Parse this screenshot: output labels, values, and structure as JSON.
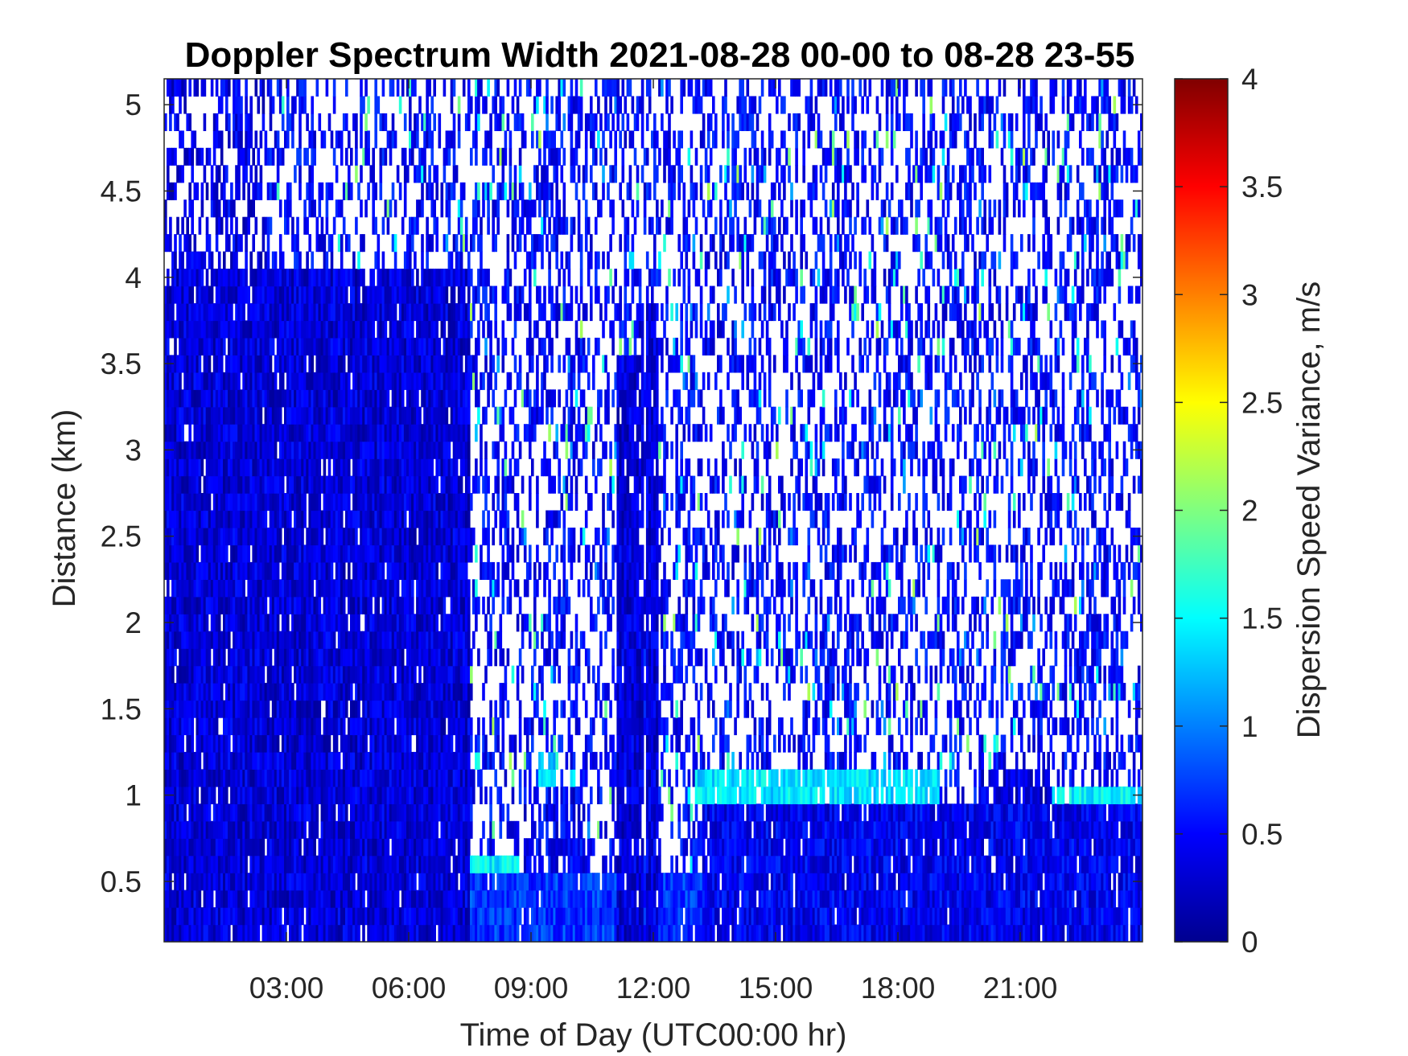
{
  "chart_data": {
    "type": "heatmap",
    "title": "Doppler Spectrum Width 2021-08-28 00-00 to 08-28 23-55",
    "xlabel": "Time of Day (UTC00:00 hr)",
    "ylabel": "Distance (km)",
    "x_tick_labels": [
      "03:00",
      "06:00",
      "09:00",
      "12:00",
      "15:00",
      "18:00",
      "21:00"
    ],
    "x_tick_values_hr": [
      3,
      6,
      9,
      12,
      15,
      18,
      21
    ],
    "xlim_hr": [
      0,
      24
    ],
    "y_tick_labels": [
      "0.5",
      "1",
      "1.5",
      "2",
      "2.5",
      "3",
      "3.5",
      "4",
      "4.5",
      "5"
    ],
    "y_tick_values": [
      0.5,
      1,
      1.5,
      2,
      2.5,
      3,
      3.5,
      4,
      4.5,
      5
    ],
    "ylim": [
      0.15,
      5.15
    ],
    "colorbar": {
      "label": "Dispersion Speed Variance, m/s",
      "tick_labels": [
        "0",
        "0.5",
        "1",
        "1.5",
        "2",
        "2.5",
        "3",
        "3.5",
        "4"
      ],
      "tick_values": [
        0,
        0.5,
        1,
        1.5,
        2,
        2.5,
        3,
        3.5,
        4
      ],
      "range": [
        0,
        4
      ],
      "colormap": "jet"
    },
    "regions": [
      {
        "x": [
          0,
          7.5
        ],
        "y": [
          0.15,
          4.05
        ],
        "value": 0.35,
        "coverage": 0.96
      },
      {
        "x": [
          0,
          2.5
        ],
        "y": [
          4.05,
          5.15
        ],
        "value": 0.4,
        "coverage": 0.5
      },
      {
        "x": [
          11.1,
          11.6
        ],
        "y": [
          0.15,
          3.55
        ],
        "value": 0.35,
        "coverage": 0.95
      },
      {
        "x": [
          11.6,
          11.75
        ],
        "y": [
          0.15,
          3.85
        ],
        "value": 0.35,
        "coverage": 0.9
      },
      {
        "x": [
          11.85,
          12.1
        ],
        "y": [
          0.15,
          3.85
        ],
        "value": 0.35,
        "coverage": 0.95
      },
      {
        "x": [
          13.2,
          24
        ],
        "y": [
          0.15,
          0.95
        ],
        "value": 0.45,
        "coverage": 0.95
      },
      {
        "x": [
          13,
          19
        ],
        "y": [
          0.95,
          1.15
        ],
        "value": 1.4,
        "coverage": 0.8
      },
      {
        "x": [
          20,
          21.8
        ],
        "y": [
          0.95,
          1.15
        ],
        "value": 0.35,
        "coverage": 0.85
      },
      {
        "x": [
          21.8,
          24
        ],
        "y": [
          0.95,
          1.05
        ],
        "value": 1.45,
        "coverage": 0.85
      },
      {
        "x": [
          7.5,
          8.7
        ],
        "y": [
          0.55,
          0.65
        ],
        "value": 1.45,
        "coverage": 0.9
      },
      {
        "x": [
          7.5,
          24
        ],
        "y": [
          0.15,
          0.55
        ],
        "value": 0.7,
        "coverage": 0.97
      },
      {
        "x": [
          9.2,
          9.6
        ],
        "y": [
          1.0,
          1.25
        ],
        "value": 1.3,
        "coverage": 0.7
      },
      {
        "x": [
          8.8,
          10.2
        ],
        "y": [
          0.55,
          1.0
        ],
        "value": 0.45,
        "coverage": 0.65
      }
    ],
    "background": {
      "x": [
        0,
        24
      ],
      "y": [
        0.15,
        5.15
      ],
      "value": 0.5,
      "coverage": 0.4
    }
  }
}
